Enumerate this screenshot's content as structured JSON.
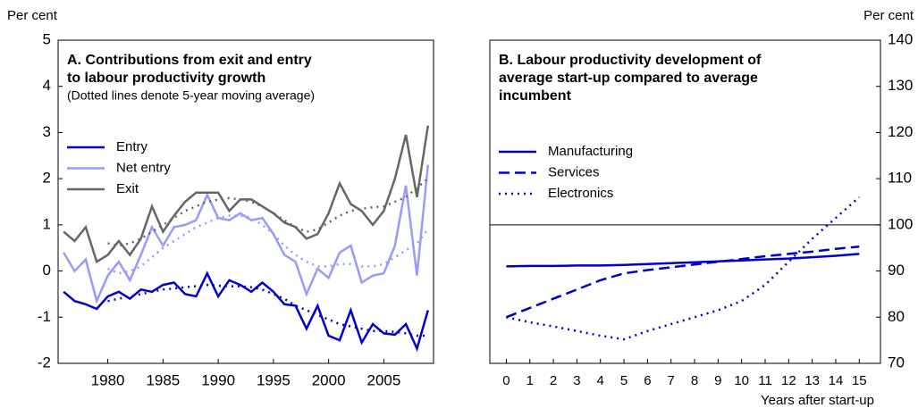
{
  "chart_data": [
    {
      "type": "line",
      "y_label": "Per cent",
      "title": [
        "A. Contributions from exit and entry",
        " to labour productivity growth"
      ],
      "subtitle": "(Dotted lines denote 5-year moving average)",
      "x": [
        1976,
        1977,
        1978,
        1979,
        1980,
        1981,
        1982,
        1983,
        1984,
        1985,
        1986,
        1987,
        1988,
        1989,
        1990,
        1991,
        1992,
        1993,
        1994,
        1995,
        1996,
        1997,
        1998,
        1999,
        2000,
        2001,
        2002,
        2003,
        2004,
        2005,
        2006,
        2007,
        2008,
        2009
      ],
      "xlim": [
        1975.5,
        2009.5
      ],
      "xticks": [
        1980,
        1985,
        1990,
        1995,
        2000,
        2005
      ],
      "ylim": [
        -2,
        5
      ],
      "yticks": [
        -2,
        -1,
        0,
        1,
        2,
        3,
        4,
        5
      ],
      "yaxis_side": "left",
      "legend_position": "upper left",
      "series": [
        {
          "name": "Entry",
          "color": "#0000cc",
          "dash": "solid",
          "values": [
            -0.45,
            -0.65,
            -0.72,
            -0.82,
            -0.55,
            -0.45,
            -0.6,
            -0.4,
            -0.45,
            -0.3,
            -0.25,
            -0.5,
            -0.55,
            -0.05,
            -0.55,
            -0.2,
            -0.3,
            -0.45,
            -0.25,
            -0.45,
            -0.72,
            -0.75,
            -1.25,
            -0.75,
            -1.4,
            -1.5,
            -0.85,
            -1.55,
            -1.15,
            -1.35,
            -1.38,
            -1.15,
            -1.68,
            -0.85
          ]
        },
        {
          "name": "Net entry",
          "color": "#9999ff",
          "dash": "solid",
          "values": [
            0.4,
            0.0,
            0.25,
            -0.65,
            -0.1,
            0.2,
            -0.2,
            0.35,
            0.95,
            0.55,
            0.95,
            1.0,
            1.1,
            1.65,
            1.15,
            1.1,
            1.25,
            1.1,
            1.15,
            0.8,
            0.35,
            0.2,
            -0.5,
            0.05,
            -0.15,
            0.4,
            0.55,
            -0.25,
            -0.1,
            -0.05,
            0.55,
            1.85,
            -0.1,
            2.3
          ]
        },
        {
          "name": "Exit",
          "color": "#666666",
          "dash": "solid",
          "values": [
            0.85,
            0.65,
            0.95,
            0.2,
            0.35,
            0.65,
            0.35,
            0.7,
            1.4,
            0.85,
            1.2,
            1.5,
            1.7,
            1.7,
            1.7,
            1.3,
            1.55,
            1.55,
            1.4,
            1.25,
            1.05,
            0.95,
            0.7,
            0.8,
            1.25,
            1.9,
            1.45,
            1.3,
            1.0,
            1.3,
            2.0,
            2.95,
            1.6,
            3.15
          ]
        },
        {
          "color": "#0000cc",
          "dash": "dotted",
          "values": [
            null,
            null,
            null,
            null,
            -0.65,
            -0.6,
            -0.55,
            -0.5,
            -0.45,
            -0.4,
            -0.38,
            -0.35,
            -0.33,
            -0.3,
            -0.32,
            -0.33,
            -0.33,
            -0.35,
            -0.4,
            -0.5,
            -0.6,
            -0.75,
            -0.85,
            -0.95,
            -1.05,
            -1.15,
            -1.2,
            -1.25,
            -1.3,
            -1.3,
            -1.32,
            -1.35,
            -1.4,
            -1.4
          ]
        },
        {
          "color": "#9999ff",
          "dash": "dotted",
          "values": [
            null,
            null,
            null,
            null,
            0.05,
            -0.05,
            0.0,
            0.1,
            0.3,
            0.5,
            0.65,
            0.8,
            0.95,
            1.05,
            1.15,
            1.2,
            1.2,
            1.15,
            1.0,
            0.8,
            0.55,
            0.35,
            0.2,
            0.1,
            0.1,
            0.15,
            0.15,
            0.1,
            0.1,
            0.15,
            0.3,
            0.45,
            0.6,
            0.9
          ]
        },
        {
          "color": "#666666",
          "dash": "dotted",
          "values": [
            null,
            null,
            null,
            null,
            0.6,
            0.55,
            0.6,
            0.7,
            0.85,
            1.0,
            1.15,
            1.3,
            1.4,
            1.5,
            1.55,
            1.58,
            1.55,
            1.5,
            1.4,
            1.25,
            1.1,
            0.95,
            0.85,
            0.9,
            1.05,
            1.2,
            1.3,
            1.35,
            1.38,
            1.4,
            1.5,
            1.6,
            1.8,
            2.0
          ]
        }
      ]
    },
    {
      "type": "line",
      "y_label": "Per cent",
      "x_label": "Years after start-up",
      "title": [
        "B. Labour productivity development of",
        "average start-up compared to average",
        "incumbent"
      ],
      "x": [
        0,
        1,
        2,
        3,
        4,
        5,
        6,
        7,
        8,
        9,
        10,
        11,
        12,
        13,
        14,
        15
      ],
      "xlim": [
        -0.7,
        15.9
      ],
      "xticks": [
        0,
        1,
        2,
        3,
        4,
        5,
        6,
        7,
        8,
        9,
        10,
        11,
        12,
        13,
        14,
        15
      ],
      "ylim": [
        70,
        140
      ],
      "yticks": [
        70,
        80,
        90,
        100,
        110,
        120,
        130,
        140
      ],
      "yaxis_side": "right",
      "legend_position": "upper left",
      "reference_line": 100,
      "series": [
        {
          "name": "Manufacturing",
          "color": "#0000cc",
          "dash": "solid",
          "values": [
            91,
            91.1,
            91.1,
            91.2,
            91.2,
            91.3,
            91.5,
            91.7,
            91.9,
            92.1,
            92.3,
            92.5,
            92.7,
            93.0,
            93.3,
            93.7
          ]
        },
        {
          "name": "Services",
          "color": "#0000cc",
          "dash": "dashed",
          "values": [
            80,
            82,
            84,
            86,
            88,
            89.5,
            90.2,
            90.8,
            91.4,
            92,
            92.6,
            93.2,
            93.7,
            94.2,
            94.8,
            95.3
          ]
        },
        {
          "name": "Electronics",
          "color": "#0000cc",
          "dash": "dotted",
          "values": [
            80,
            78.9,
            78,
            77,
            76,
            75.2,
            77,
            78.5,
            80,
            81.5,
            83.5,
            87,
            92,
            97,
            101.5,
            106
          ]
        }
      ]
    }
  ]
}
